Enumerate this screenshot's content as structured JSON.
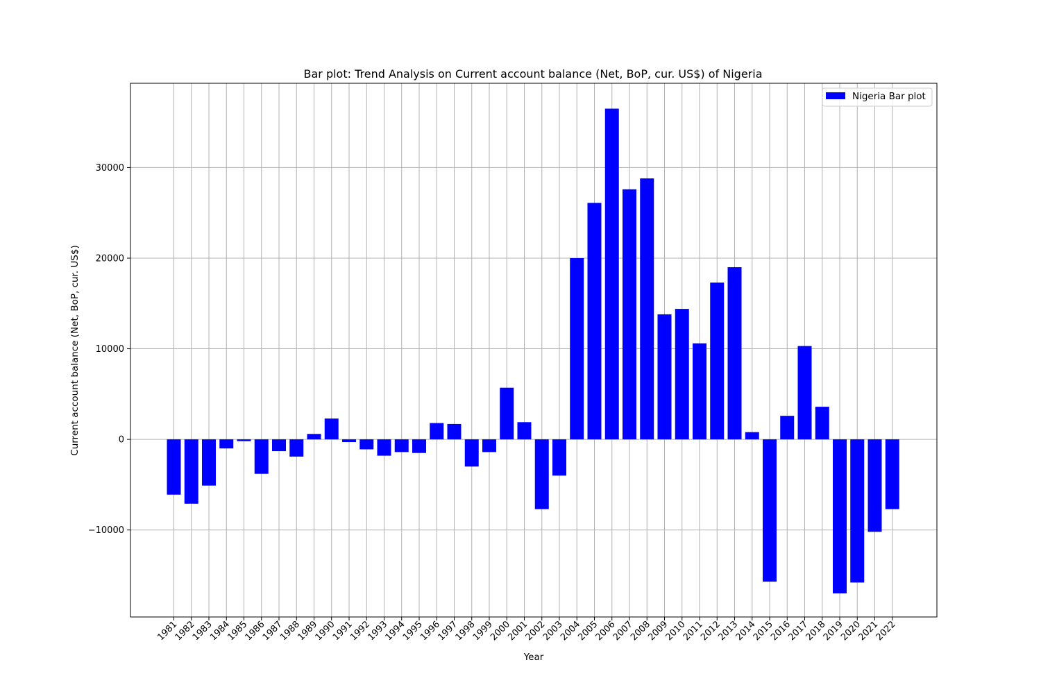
{
  "chart_data": {
    "type": "bar",
    "title": "Bar plot: Trend Analysis on Current account balance (Net, BoP, cur. US$) of Nigeria",
    "xlabel": "Year",
    "ylabel": "Current account balance (Net, BoP, cur. US$)",
    "ylim": [
      -19600,
      39300
    ],
    "yticks": [
      -10000,
      0,
      10000,
      20000,
      30000
    ],
    "grid": true,
    "legend_position": "top-right",
    "bar_color": "#0000ff",
    "grid_color": "#b0b0b0",
    "categories": [
      "1981",
      "1982",
      "1983",
      "1984",
      "1985",
      "1986",
      "1987",
      "1988",
      "1989",
      "1990",
      "1991",
      "1992",
      "1993",
      "1994",
      "1995",
      "1996",
      "1997",
      "1998",
      "1999",
      "2000",
      "2001",
      "2002",
      "2003",
      "2004",
      "2005",
      "2006",
      "2007",
      "2008",
      "2009",
      "2010",
      "2011",
      "2012",
      "2013",
      "2014",
      "2015",
      "2016",
      "2017",
      "2018",
      "2019",
      "2020",
      "2021",
      "2022"
    ],
    "series": [
      {
        "name": "Nigeria Bar plot",
        "values": [
          -6100,
          -7100,
          -5100,
          -1000,
          -200,
          -3800,
          -1300,
          -1900,
          600,
          2300,
          -300,
          -1100,
          -1800,
          -1400,
          -1500,
          1800,
          1700,
          -3000,
          -1400,
          5700,
          1900,
          -7700,
          -4000,
          20000,
          26100,
          36500,
          27600,
          28800,
          13800,
          14400,
          10600,
          17300,
          19000,
          800,
          -15700,
          2600,
          10300,
          3600,
          -17000,
          -15800,
          -10200,
          -7700
        ]
      }
    ]
  }
}
